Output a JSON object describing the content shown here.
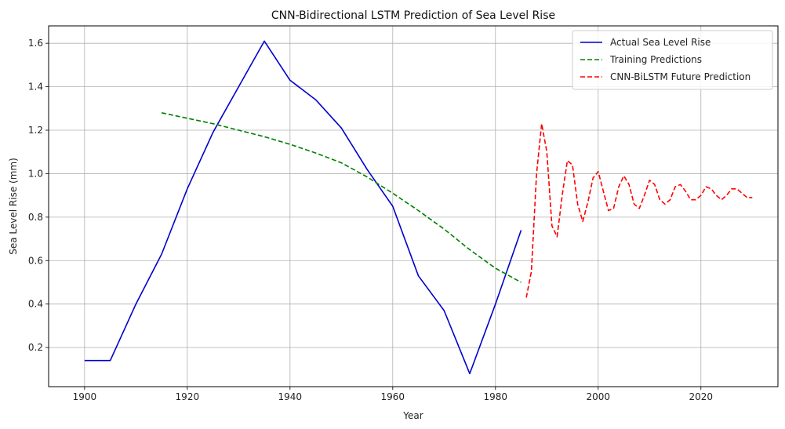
{
  "chart_data": {
    "type": "line",
    "title": "CNN-Bidirectional LSTM Prediction of Sea Level Rise",
    "xlabel": "Year",
    "ylabel": "Sea Level Rise (mm)",
    "xlim": [
      1893,
      2035
    ],
    "ylim": [
      0.02,
      1.68
    ],
    "x_ticks": [
      1900,
      1920,
      1940,
      1960,
      1980,
      2000,
      2020
    ],
    "y_ticks": [
      0.2,
      0.4,
      0.6,
      0.8,
      1.0,
      1.2,
      1.4,
      1.6
    ],
    "x_tick_labels": [
      "1900",
      "1920",
      "1940",
      "1960",
      "1980",
      "2000",
      "2020"
    ],
    "y_tick_labels": [
      "0.2",
      "0.4",
      "0.6",
      "0.8",
      "1.0",
      "1.2",
      "1.4",
      "1.6"
    ],
    "grid": true,
    "legend_position": "top-right",
    "series": [
      {
        "name": "Actual Sea Level Rise",
        "color": "#0000cd",
        "style": "solid",
        "x": [
          1900,
          1905,
          1910,
          1915,
          1920,
          1925,
          1930,
          1935,
          1940,
          1945,
          1950,
          1955,
          1960,
          1965,
          1970,
          1975,
          1980,
          1985
        ],
        "y": [
          0.14,
          0.14,
          0.4,
          0.63,
          0.93,
          1.19,
          1.4,
          1.61,
          1.43,
          1.34,
          1.21,
          1.02,
          0.85,
          0.53,
          0.37,
          0.08,
          0.4,
          0.74
        ]
      },
      {
        "name": "Training Predictions",
        "color": "#008000",
        "style": "dashed",
        "x": [
          1915,
          1920,
          1925,
          1930,
          1935,
          1940,
          1945,
          1950,
          1955,
          1960,
          1965,
          1970,
          1975,
          1980,
          1985
        ],
        "y": [
          1.28,
          1.255,
          1.23,
          1.2,
          1.17,
          1.135,
          1.095,
          1.05,
          0.985,
          0.91,
          0.83,
          0.745,
          0.65,
          0.565,
          0.5
        ]
      },
      {
        "name": "CNN-BiLSTM Future Prediction",
        "color": "#ff0000",
        "style": "dashed",
        "x": [
          1986,
          1987,
          1988,
          1989,
          1990,
          1991,
          1992,
          1993,
          1994,
          1995,
          1996,
          1997,
          1998,
          1999,
          2000,
          2001,
          2002,
          2003,
          2004,
          2005,
          2006,
          2007,
          2008,
          2009,
          2010,
          2011,
          2012,
          2013,
          2014,
          2015,
          2016,
          2017,
          2018,
          2019,
          2020,
          2021,
          2022,
          2023,
          2024,
          2025,
          2026,
          2027,
          2028,
          2029,
          2030
        ],
        "y": [
          0.43,
          0.55,
          1.0,
          1.23,
          1.1,
          0.76,
          0.71,
          0.9,
          1.06,
          1.04,
          0.86,
          0.78,
          0.87,
          0.98,
          1.01,
          0.92,
          0.83,
          0.84,
          0.94,
          0.99,
          0.95,
          0.86,
          0.84,
          0.9,
          0.97,
          0.95,
          0.88,
          0.86,
          0.88,
          0.94,
          0.95,
          0.92,
          0.88,
          0.88,
          0.9,
          0.94,
          0.93,
          0.9,
          0.88,
          0.9,
          0.93,
          0.93,
          0.91,
          0.89,
          0.89
        ]
      }
    ]
  }
}
